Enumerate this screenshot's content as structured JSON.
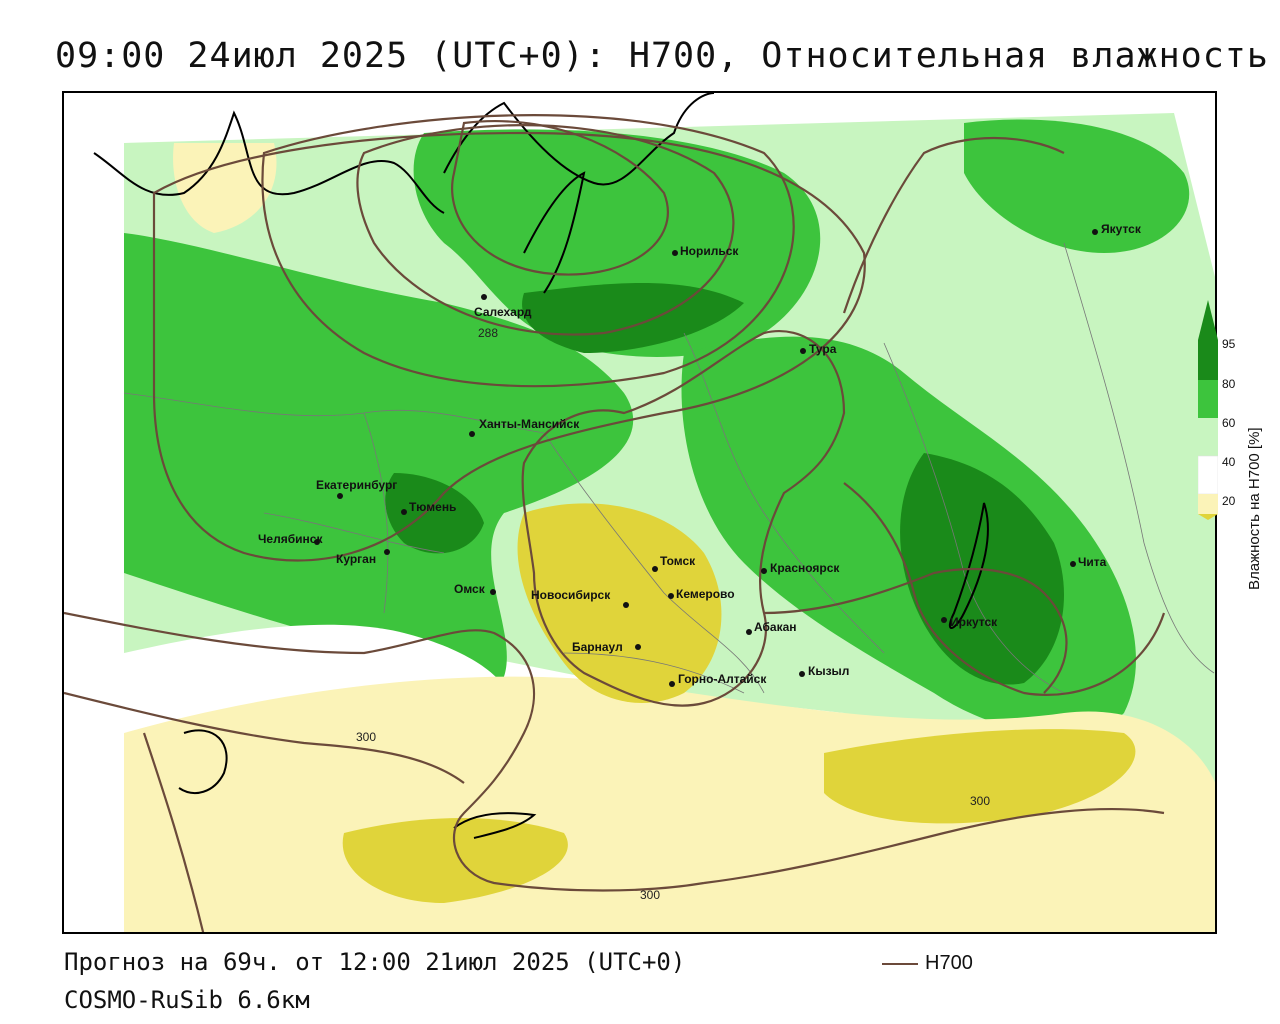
{
  "title": "09:00 24июл 2025 (UTC+0): H700, Относительная влажность",
  "footer": {
    "forecast": "Прогноз на 69ч. от 12:00 21июл 2025 (UTC+0)",
    "model": "COSMO-RuSib 6.6км"
  },
  "legend": {
    "line_label": "H700",
    "line_color": "#6b4a3a"
  },
  "colorbar": {
    "label": "Влажность на H700 [%]",
    "ticks": [
      "95",
      "80",
      "60",
      "40",
      "20"
    ],
    "colors": [
      "#1a8a1a",
      "#3dc43d",
      "#c8f5c0",
      "#ffffff",
      "#fbf3b8",
      "#e0d43a"
    ]
  },
  "cities": [
    "Якутск",
    "Норильск",
    "Салехард",
    "Тура",
    "Ханты-Мансийск",
    "Екатеринбург",
    "Тюмень",
    "Челябинск",
    "Курган",
    "Омск",
    "Томск",
    "Новосибирск",
    "Кемерово",
    "Красноярск",
    "Абакан",
    "Барнаул",
    "Горно-Алтайск",
    "Кызыл",
    "Иркутск",
    "Чита"
  ],
  "isoline_labels": [
    "288",
    "300",
    "300",
    "300"
  ]
}
